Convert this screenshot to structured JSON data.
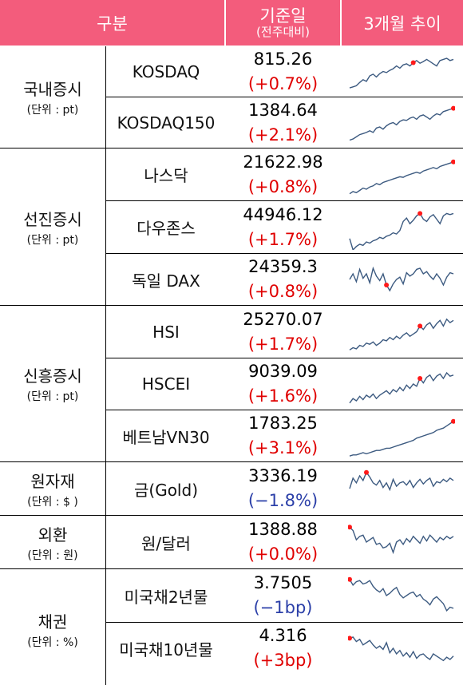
{
  "header": {
    "category": "구분",
    "date_title": "기준일",
    "date_sub": "(전주대비)",
    "trend": "3개월 추이"
  },
  "groups": [
    {
      "name": "국내증시",
      "unit": "(단위 : pt)"
    },
    {
      "name": "선진증시",
      "unit": "(단위 : pt)"
    },
    {
      "name": "신흥증시",
      "unit": "(단위 : pt)"
    },
    {
      "name": "원자재",
      "unit": "(단위 : $ )"
    },
    {
      "name": "외환",
      "unit": "(단위 : 원)"
    },
    {
      "name": "채권",
      "unit": "(단위 : %)"
    }
  ],
  "rows": [
    {
      "name": "KOSDAQ",
      "value": "815.26",
      "change": "(+0.7%)",
      "direction": "up"
    },
    {
      "name": "KOSDAQ150",
      "value": "1384.64",
      "change": "(+2.1%)",
      "direction": "up"
    },
    {
      "name": "나스닥",
      "value": "21622.98",
      "change": "(+0.8%)",
      "direction": "up"
    },
    {
      "name": "다우존스",
      "value": "44946.12",
      "change": "(+1.7%)",
      "direction": "up"
    },
    {
      "name": "독일 DAX",
      "value": "24359.3",
      "change": "(+0.8%)",
      "direction": "up"
    },
    {
      "name": "HSI",
      "value": "25270.07",
      "change": "(+1.7%)",
      "direction": "up"
    },
    {
      "name": "HSCEI",
      "value": "9039.09",
      "change": "(+1.6%)",
      "direction": "up"
    },
    {
      "name": "베트남VN30",
      "value": "1783.25",
      "change": "(+3.1%)",
      "direction": "up"
    },
    {
      "name": "금(Gold)",
      "value": "3336.19",
      "change": "(−1.8%)",
      "direction": "down"
    },
    {
      "name": "원/달러",
      "value": "1388.88",
      "change": "(+0.0%)",
      "direction": "up"
    },
    {
      "name": "미국채2년물",
      "value": "3.7505",
      "change": "(−1bp)",
      "direction": "down"
    },
    {
      "name": "미국채10년물",
      "value": "4.316",
      "change": "(+3bp)",
      "direction": "up"
    }
  ],
  "colors": {
    "header_bg": "#f35c7c",
    "up": "#e00000",
    "down": "#2b3fa8",
    "sparkline": "#3c5a80",
    "peak_marker": "#ff1a1a"
  }
}
